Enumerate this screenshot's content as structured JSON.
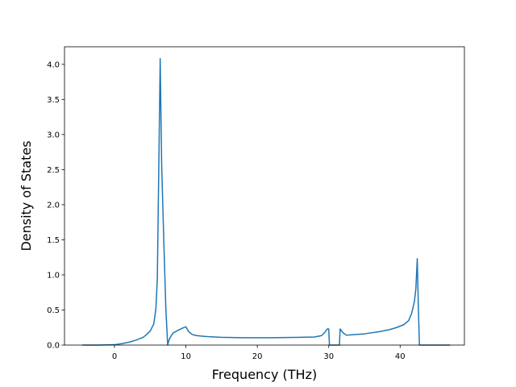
{
  "chart_data": {
    "type": "line",
    "title": "",
    "xlabel": "Frequency (THz)",
    "ylabel": "Density of States",
    "xlim": [
      -7,
      49
    ],
    "ylim": [
      0,
      4.25
    ],
    "xticks": [
      0,
      10,
      20,
      30,
      40
    ],
    "xtick_labels": [
      "0",
      "10",
      "20",
      "30",
      "40"
    ],
    "yticks": [
      0,
      0.5,
      1.0,
      1.5,
      2.0,
      2.5,
      3.0,
      3.5,
      4.0
    ],
    "ytick_labels": [
      "0.0",
      "0.5",
      "1.0",
      "1.5",
      "2.0",
      "2.5",
      "3.0",
      "3.5",
      "4.0"
    ],
    "grid": false,
    "line_color": "#1f77b4",
    "series": [
      {
        "x": [
          -4.5,
          -2,
          0,
          1,
          2,
          3,
          4,
          4.5,
          5,
          5.5,
          5.8,
          6.0,
          6.2,
          6.4,
          6.6,
          6.9,
          7.2,
          7.45,
          7.6,
          7.8,
          8.2,
          8.7,
          9.5,
          10.0,
          10.4,
          10.9,
          11.5,
          13,
          15,
          18,
          22,
          26,
          28,
          29,
          29.4,
          29.8,
          30.0,
          30.1,
          30.5,
          31.0,
          31.5,
          31.6,
          32.0,
          32.5,
          33,
          35,
          37,
          38.5,
          39.5,
          40.5,
          41.2,
          41.6,
          42.0,
          42.2,
          42.4,
          42.55,
          42.7,
          42.85,
          44,
          46,
          47
        ],
        "y": [
          0,
          0,
          0.005,
          0.02,
          0.04,
          0.07,
          0.11,
          0.15,
          0.2,
          0.3,
          0.52,
          0.95,
          2.5,
          4.08,
          2.6,
          1.5,
          0.5,
          0.0,
          0.06,
          0.11,
          0.17,
          0.2,
          0.24,
          0.26,
          0.19,
          0.15,
          0.135,
          0.12,
          0.11,
          0.105,
          0.105,
          0.11,
          0.115,
          0.135,
          0.175,
          0.23,
          0.23,
          0.0,
          0.0,
          0.0,
          0.0,
          0.23,
          0.175,
          0.14,
          0.145,
          0.16,
          0.19,
          0.22,
          0.25,
          0.29,
          0.35,
          0.45,
          0.62,
          0.8,
          1.23,
          0.55,
          0.0,
          0.0,
          0.0,
          0.0,
          0.0
        ]
      }
    ]
  }
}
